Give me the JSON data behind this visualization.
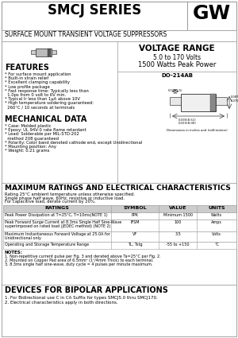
{
  "title": "SMCJ SERIES",
  "subtitle": "SURFACE MOUNT TRANSIENT VOLTAGE SUPPRESSORS",
  "logo": "GW",
  "voltage_range_title": "VOLTAGE RANGE",
  "voltage_range": "5.0 to 170 Volts",
  "peak_power": "1500 Watts Peak Power",
  "package": "DO-214AB",
  "features_title": "FEATURES",
  "features": [
    "* For surface mount application",
    "* Built-in strain relief",
    "* Excellent clamping capability",
    "* Low profile package",
    "* Fast response time: Typically less than",
    "  1.0ps from 0 volt to 6V min.",
    "* Typical Ir less than 1μA above 10V",
    "* High temperature soldering guaranteed:",
    "  260°C / 10 seconds at terminals"
  ],
  "mech_title": "MECHANICAL DATA",
  "mech": [
    "* Case: Molded plastic",
    "* Epoxy: UL 94V-0 rate flame retardant",
    "* Lead: Solderable per MIL-STD-202",
    "  method 208 guaranteed",
    "* Polarity: Color band denoted cathode end, except Unidirectional",
    "* Mounting position: Any",
    "* Weight: 0.21 grams"
  ],
  "max_ratings_title": "MAXIMUM RATINGS AND ELECTRICAL CHARACTERISTICS",
  "ratings_notes": [
    "Rating 25°C ambient temperature unless otherwise specified.",
    "Single phase half wave, 60Hz, resistive or inductive load.",
    "For capacitive load, derate current by 20%."
  ],
  "table_headers": [
    "RATINGS",
    "SYMBOL",
    "VALUE",
    "UNITS"
  ],
  "table_rows": [
    [
      "Peak Power Dissipation at T=25°C, T=10ms(NOTE 1)",
      "PPK",
      "Minimum 1500",
      "Watts"
    ],
    [
      "Peak Forward Surge Current at 8.3ms Single Half Sine-Wave\nsuperimposed on rated load (JEDEC method) (NOTE 2)",
      "IFSM",
      "100",
      "Amps"
    ],
    [
      "Maximum Instantaneous Forward Voltage at 25.0A for\nUnidirectional only",
      "VF",
      "3.5",
      "Volts"
    ],
    [
      "Operating and Storage Temperature Range",
      "TL, Tstg",
      "-55 to +150",
      "°C"
    ]
  ],
  "notes_title": "NOTES:",
  "notes": [
    "1. Non-repetitive current pulse per Fig. 3 and derated above Ta=25°C per Fig. 2.",
    "2. Mounted on Copper Pad area of 6.5mm² (1²/4mm Thick) to each terminal.",
    "3. 8.3ms single half sine-wave, duty cycle = 4 pulses per minute maximum."
  ],
  "bipolar_title": "DEVICES FOR BIPOLAR APPLICATIONS",
  "bipolar": [
    "1. For Bidirectional use C in CA Suffix for types SMCJ5.0 thru SMCJ170.",
    "2. Electrical characteristics apply in both directions."
  ],
  "bg_color": "#ffffff",
  "border_color": "#999999",
  "text_color": "#000000",
  "table_header_bg": "#cccccc"
}
